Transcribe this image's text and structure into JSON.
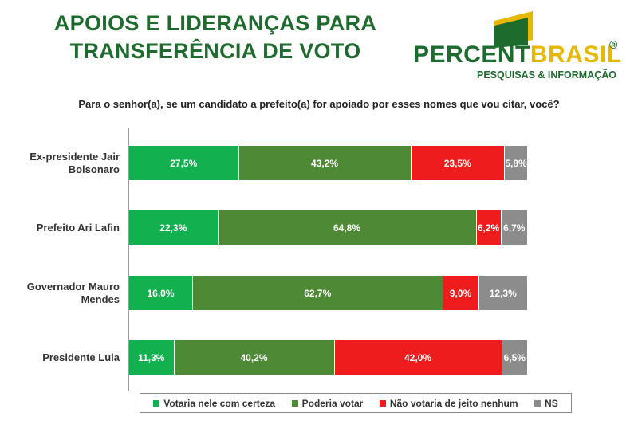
{
  "header": {
    "title_line1": "APOIOS E LIDERANÇAS PARA",
    "title_line2": "TRANSFERÊNCIA DE VOTO"
  },
  "logo": {
    "brand_part1": "PERCENT",
    "brand_part2": "BRASIL",
    "registered": "®",
    "subtitle": "PESQUISAS & INFORMAÇÃO",
    "green": "#1e6b2e",
    "yellow": "#e6b800"
  },
  "chart_data": {
    "type": "bar",
    "orientation": "horizontal",
    "stacked": true,
    "title": "Para o senhor(a), se um candidato a prefeito(a) for apoiado por esses nomes que vou citar, você?",
    "categories": [
      [
        "Ex-presidente Jair",
        "Bolsonaro"
      ],
      [
        "Prefeito Ari Lafin"
      ],
      [
        "Governador Mauro",
        "Mendes"
      ],
      [
        "Presidente Lula"
      ]
    ],
    "series": [
      {
        "name": "Votaria nele com certeza",
        "color": "#12b04f",
        "values": [
          27.5,
          22.3,
          16.0,
          11.3
        ],
        "labels": [
          "27,5%",
          "22,3%",
          "16,0%",
          "11,3%"
        ]
      },
      {
        "name": "Poderia votar",
        "color": "#4e8a35",
        "values": [
          43.2,
          64.8,
          62.7,
          40.2
        ],
        "labels": [
          "43,2%",
          "64,8%",
          "62,7%",
          "40,2%"
        ]
      },
      {
        "name": "Não votaria de jeito nenhum",
        "color": "#ee1c1c",
        "values": [
          23.5,
          6.2,
          9.0,
          42.0
        ],
        "labels": [
          "23,5%",
          "6,2%",
          "9,0%",
          "42,0%"
        ]
      },
      {
        "name": "NS",
        "color": "#8c8c8c",
        "values": [
          5.8,
          6.7,
          12.3,
          6.5
        ],
        "labels": [
          "5,8%",
          "6,7%",
          "12,3%",
          "6,5%"
        ]
      }
    ],
    "xlim": [
      0,
      100
    ],
    "legend_position": "bottom"
  }
}
